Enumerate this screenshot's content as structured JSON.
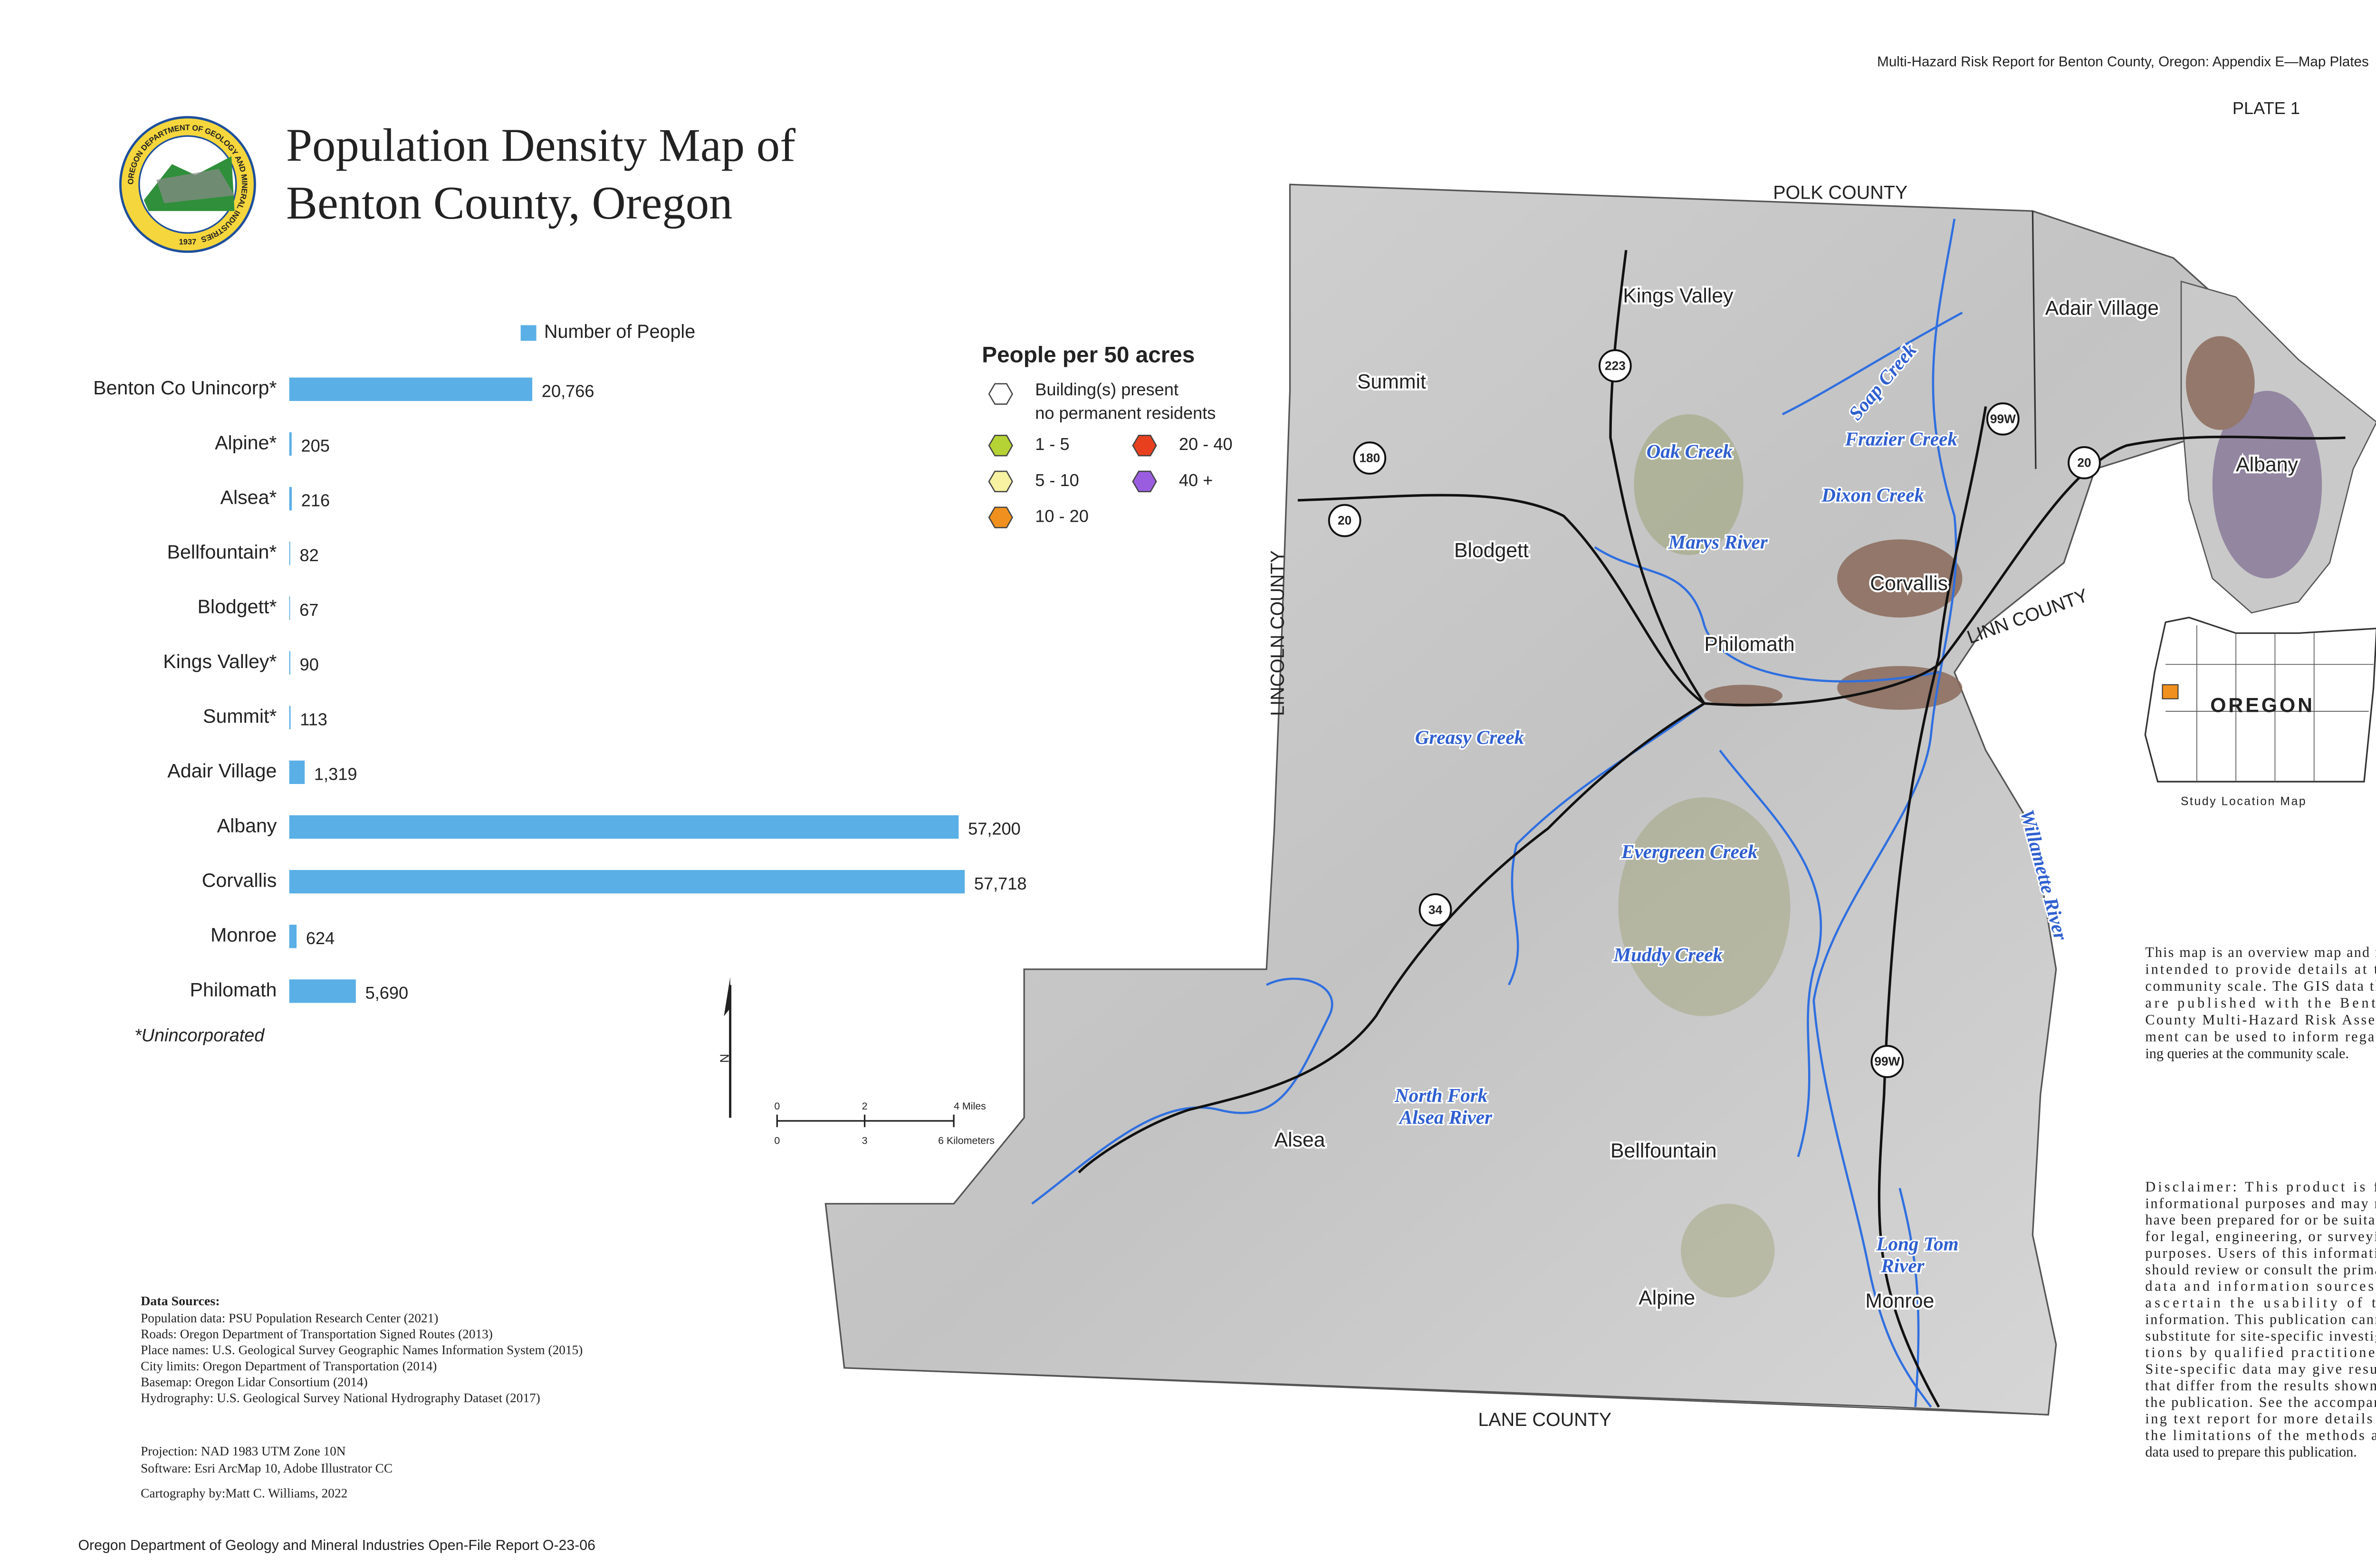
{
  "header": {
    "report": "Multi-Hazard Risk Report for Benton County, Oregon: Appendix E—Map Plates",
    "plate": "PLATE 1"
  },
  "logo": {
    "ring": "OREGON DEPARTMENT OF GEOLOGY AND MINERAL INDUSTRIES",
    "year": "1937"
  },
  "title": [
    "Population Density Map of",
    "Benton County, Oregon"
  ],
  "chart_data": {
    "type": "bar",
    "orientation": "horizontal",
    "categories": [
      "Benton Co Unincorp*",
      "Alpine*",
      "Alsea*",
      "Bellfountain*",
      "Blodgett*",
      "Kings Valley*",
      "Summit*",
      "Adair Village",
      "Albany",
      "Corvallis",
      "Monroe",
      "Philomath"
    ],
    "series": [
      {
        "name": "Number of People",
        "color": "#5aafe6",
        "values": [
          20766,
          205,
          216,
          82,
          67,
          90,
          113,
          1319,
          57200,
          57718,
          624,
          5690
        ],
        "value_labels": [
          "20,766",
          "205",
          "216",
          "82",
          "67",
          "90",
          "113",
          "1,319",
          "57,200",
          "57,718",
          "624",
          "5,690"
        ]
      }
    ],
    "note": "*Unincorporated"
  },
  "legend": {
    "title": "People per 50 acres",
    "items": [
      {
        "label": [
          "Building(s) present",
          "no permanent residents"
        ],
        "color": "#ffffff"
      },
      {
        "label": "1 - 5",
        "color": "#b5d334"
      },
      {
        "label": "5 - 10",
        "color": "#f6f2a2"
      },
      {
        "label": "10 - 20",
        "color": "#f0901e"
      },
      {
        "label": "20 - 40",
        "color": "#e8401e"
      },
      {
        "label": "40 +",
        "color": "#9b5de0"
      }
    ]
  },
  "map": {
    "counties": [
      "POLK COUNTY",
      "LINCOLN COUNTY",
      "LINN COUNTY",
      "LANE COUNTY"
    ],
    "places": [
      "Kings Valley",
      "Summit",
      "Blodgett",
      "Adair Village",
      "Albany",
      "Corvallis",
      "Philomath",
      "Alsea",
      "Bellfountain",
      "Alpine",
      "Monroe"
    ],
    "waterways": [
      [
        "Soap Creek"
      ],
      [
        "Oak Creek"
      ],
      [
        "Frazier Creek"
      ],
      [
        "Dixon Creek"
      ],
      [
        "Marys River"
      ],
      [
        "Greasy Creek"
      ],
      [
        "Evergreen Creek"
      ],
      [
        "Muddy Creek"
      ],
      [
        "North Fork",
        "Alsea River"
      ],
      [
        "Willamette River"
      ],
      [
        "Long Tom",
        "River"
      ]
    ],
    "highways": [
      "223",
      "180",
      "20",
      "20",
      "99W",
      "99W",
      "34"
    ]
  },
  "inset": {
    "label": "OREGON",
    "caption": "Study Location Map"
  },
  "scale_bar": {
    "miles": [
      "0",
      "2",
      "4 Miles"
    ],
    "kilometers": [
      "0",
      "3",
      "6 Kilometers"
    ]
  },
  "north": "N",
  "notes": {
    "overview": [
      "This map is an overview map and not",
      "intended to provide details at the",
      "community scale. The GIS data that",
      "are published with the Benton",
      "County Multi-Hazard Risk Assess-",
      "ment can be used to inform regard-",
      "ing queries at the community scale."
    ],
    "disclaimer": [
      "Disclaimer: This product is for",
      "informational purposes and may not",
      "have been prepared for or be suitable",
      "for legal, engineering, or surveying",
      "purposes. Users of this information",
      "should review or consult the primary",
      "data and information sources to",
      "ascertain the usability of the",
      "information. This publication cannot",
      "substitute for site-specific investiga-",
      "tions by qualified practitioners.",
      "Site-specific data may give results",
      "that differ from the results shown in",
      "the publication. See the accompany-",
      "ing text report for more details on",
      "the limitations of the methods and",
      "data used to prepare this publication."
    ]
  },
  "sources": {
    "heading": "Data Sources:",
    "lines": [
      "Population data: PSU Population Research Center (2021)",
      "Roads: Oregon Department of Transportation Signed Routes (2013)",
      "Place names: U.S. Geological Survey Geographic Names Information System (2015)",
      "City limits: Oregon Department of Transportation (2014)",
      "Basemap: Oregon Lidar Consortium (2014)",
      "Hydrography: U.S. Geological Survey National Hydrography Dataset (2017)"
    ],
    "projection": [
      "Projection: NAD 1983 UTM Zone 10N",
      "Software: Esri  ArcMap 10, Adobe Illustrator CC"
    ],
    "cartography": "Cartography by:Matt C. Williams, 2022"
  },
  "footer": "Oregon Department of Geology and Mineral Industries Open-File Report O-23-06"
}
